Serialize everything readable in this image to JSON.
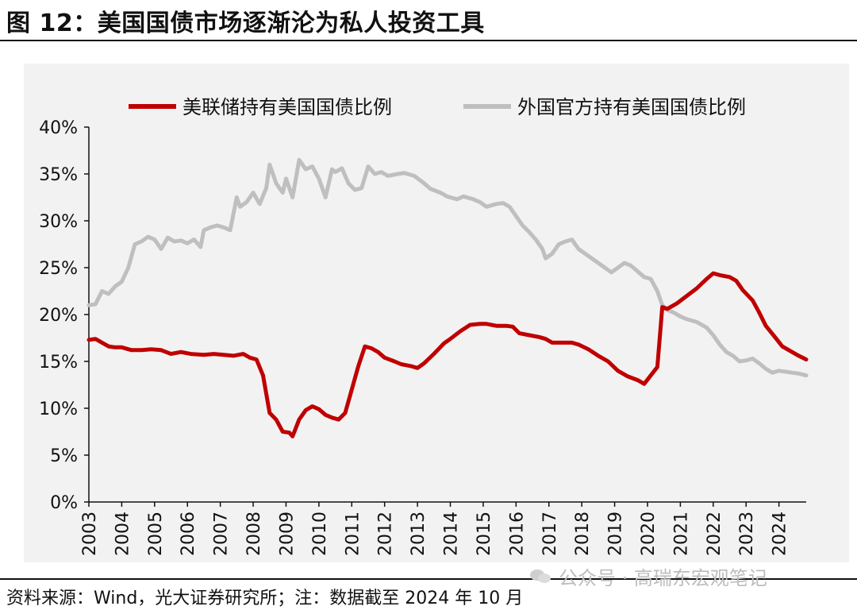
{
  "figure": {
    "title": "图 12：美国国债市场逐渐沦为私人投资工具",
    "source": "资料来源：Wind，光大证券研究所；注：数据截至 2024 年 10 月",
    "watermark": "公众号 · 高瑞东宏观笔记"
  },
  "colors": {
    "fed": "#c00000",
    "foreign": "#bfbfbf",
    "panel": "#f2f2f2"
  },
  "chart_data": {
    "type": "line",
    "title": "",
    "xlabel": "",
    "ylabel": "",
    "ylim": [
      0,
      40
    ],
    "yticks": [
      "0%",
      "5%",
      "10%",
      "15%",
      "20%",
      "25%",
      "30%",
      "35%",
      "40%"
    ],
    "xlim": [
      2003,
      2024.83
    ],
    "xticks": [
      "2003",
      "2004",
      "2005",
      "2006",
      "2007",
      "2008",
      "2009",
      "2010",
      "2011",
      "2012",
      "2013",
      "2014",
      "2015",
      "2016",
      "2017",
      "2018",
      "2019",
      "2020",
      "2021",
      "2022",
      "2023",
      "2024"
    ],
    "grid": false,
    "legend": "top",
    "series": [
      {
        "name": "美联储持有美国国债比例",
        "color": "#c00000",
        "points": [
          [
            2003.0,
            17.3
          ],
          [
            2003.2,
            17.4
          ],
          [
            2003.4,
            17.0
          ],
          [
            2003.6,
            16.6
          ],
          [
            2003.8,
            16.5
          ],
          [
            2004.0,
            16.5
          ],
          [
            2004.3,
            16.2
          ],
          [
            2004.6,
            16.2
          ],
          [
            2004.9,
            16.3
          ],
          [
            2005.2,
            16.2
          ],
          [
            2005.5,
            15.8
          ],
          [
            2005.8,
            16.0
          ],
          [
            2006.1,
            15.8
          ],
          [
            2006.5,
            15.7
          ],
          [
            2006.8,
            15.8
          ],
          [
            2007.1,
            15.7
          ],
          [
            2007.4,
            15.6
          ],
          [
            2007.7,
            15.8
          ],
          [
            2007.9,
            15.4
          ],
          [
            2008.1,
            15.2
          ],
          [
            2008.3,
            13.5
          ],
          [
            2008.5,
            9.5
          ],
          [
            2008.7,
            8.8
          ],
          [
            2008.9,
            7.5
          ],
          [
            2009.1,
            7.4
          ],
          [
            2009.2,
            7.0
          ],
          [
            2009.4,
            8.8
          ],
          [
            2009.6,
            9.8
          ],
          [
            2009.8,
            10.2
          ],
          [
            2010.0,
            9.9
          ],
          [
            2010.2,
            9.3
          ],
          [
            2010.4,
            9.0
          ],
          [
            2010.6,
            8.8
          ],
          [
            2010.8,
            9.5
          ],
          [
            2011.0,
            12.0
          ],
          [
            2011.2,
            14.5
          ],
          [
            2011.4,
            16.6
          ],
          [
            2011.6,
            16.4
          ],
          [
            2011.8,
            16.0
          ],
          [
            2012.0,
            15.4
          ],
          [
            2012.3,
            15.0
          ],
          [
            2012.5,
            14.7
          ],
          [
            2012.8,
            14.5
          ],
          [
            2013.0,
            14.3
          ],
          [
            2013.2,
            14.8
          ],
          [
            2013.5,
            15.8
          ],
          [
            2013.8,
            16.9
          ],
          [
            2014.0,
            17.4
          ],
          [
            2014.3,
            18.2
          ],
          [
            2014.6,
            18.9
          ],
          [
            2014.9,
            19.0
          ],
          [
            2015.1,
            19.0
          ],
          [
            2015.4,
            18.8
          ],
          [
            2015.7,
            18.8
          ],
          [
            2015.9,
            18.7
          ],
          [
            2016.1,
            18.0
          ],
          [
            2016.4,
            17.8
          ],
          [
            2016.7,
            17.6
          ],
          [
            2016.9,
            17.4
          ],
          [
            2017.1,
            17.0
          ],
          [
            2017.4,
            17.0
          ],
          [
            2017.7,
            17.0
          ],
          [
            2017.9,
            16.8
          ],
          [
            2018.2,
            16.3
          ],
          [
            2018.5,
            15.6
          ],
          [
            2018.8,
            15.0
          ],
          [
            2019.1,
            14.0
          ],
          [
            2019.4,
            13.4
          ],
          [
            2019.7,
            13.0
          ],
          [
            2019.9,
            12.6
          ],
          [
            2020.1,
            13.5
          ],
          [
            2020.3,
            14.4
          ],
          [
            2020.45,
            20.8
          ],
          [
            2020.6,
            20.6
          ],
          [
            2020.9,
            21.2
          ],
          [
            2021.2,
            22.0
          ],
          [
            2021.5,
            22.8
          ],
          [
            2021.8,
            23.8
          ],
          [
            2022.0,
            24.4
          ],
          [
            2022.2,
            24.2
          ],
          [
            2022.5,
            24.0
          ],
          [
            2022.7,
            23.6
          ],
          [
            2022.9,
            22.6
          ],
          [
            2023.2,
            21.5
          ],
          [
            2023.4,
            20.2
          ],
          [
            2023.6,
            18.8
          ],
          [
            2023.9,
            17.5
          ],
          [
            2024.1,
            16.6
          ],
          [
            2024.4,
            16.0
          ],
          [
            2024.6,
            15.6
          ],
          [
            2024.83,
            15.2
          ]
        ]
      },
      {
        "name": "外国官方持有美国国债比例",
        "color": "#bfbfbf",
        "points": [
          [
            2003.0,
            21.0
          ],
          [
            2003.2,
            21.1
          ],
          [
            2003.4,
            22.5
          ],
          [
            2003.6,
            22.2
          ],
          [
            2003.8,
            23.0
          ],
          [
            2004.0,
            23.5
          ],
          [
            2004.2,
            25.0
          ],
          [
            2004.4,
            27.5
          ],
          [
            2004.6,
            27.8
          ],
          [
            2004.8,
            28.3
          ],
          [
            2005.0,
            28.0
          ],
          [
            2005.2,
            27.0
          ],
          [
            2005.4,
            28.2
          ],
          [
            2005.6,
            27.8
          ],
          [
            2005.8,
            27.9
          ],
          [
            2006.0,
            27.6
          ],
          [
            2006.2,
            28.0
          ],
          [
            2006.4,
            27.2
          ],
          [
            2006.5,
            29.0
          ],
          [
            2006.7,
            29.3
          ],
          [
            2006.9,
            29.5
          ],
          [
            2007.1,
            29.3
          ],
          [
            2007.3,
            29.0
          ],
          [
            2007.5,
            32.5
          ],
          [
            2007.6,
            31.5
          ],
          [
            2007.8,
            32.0
          ],
          [
            2008.0,
            33.0
          ],
          [
            2008.2,
            31.8
          ],
          [
            2008.4,
            33.5
          ],
          [
            2008.5,
            36.0
          ],
          [
            2008.7,
            34.0
          ],
          [
            2008.9,
            33.0
          ],
          [
            2009.0,
            34.5
          ],
          [
            2009.2,
            32.5
          ],
          [
            2009.4,
            36.5
          ],
          [
            2009.6,
            35.5
          ],
          [
            2009.8,
            35.8
          ],
          [
            2010.0,
            34.5
          ],
          [
            2010.2,
            32.5
          ],
          [
            2010.4,
            35.5
          ],
          [
            2010.5,
            35.2
          ],
          [
            2010.7,
            35.6
          ],
          [
            2010.9,
            34.0
          ],
          [
            2011.1,
            33.3
          ],
          [
            2011.3,
            33.5
          ],
          [
            2011.5,
            35.8
          ],
          [
            2011.7,
            35.0
          ],
          [
            2011.9,
            35.2
          ],
          [
            2012.1,
            34.8
          ],
          [
            2012.4,
            35.0
          ],
          [
            2012.6,
            35.1
          ],
          [
            2012.9,
            34.8
          ],
          [
            2013.2,
            34.0
          ],
          [
            2013.4,
            33.4
          ],
          [
            2013.7,
            33.0
          ],
          [
            2013.9,
            32.6
          ],
          [
            2014.2,
            32.3
          ],
          [
            2014.4,
            32.6
          ],
          [
            2014.7,
            32.3
          ],
          [
            2014.9,
            32.0
          ],
          [
            2015.1,
            31.5
          ],
          [
            2015.4,
            31.8
          ],
          [
            2015.6,
            31.9
          ],
          [
            2015.8,
            31.5
          ],
          [
            2016.0,
            30.5
          ],
          [
            2016.2,
            29.5
          ],
          [
            2016.4,
            28.8
          ],
          [
            2016.6,
            28.0
          ],
          [
            2016.8,
            27.0
          ],
          [
            2016.9,
            26.0
          ],
          [
            2017.1,
            26.5
          ],
          [
            2017.3,
            27.5
          ],
          [
            2017.5,
            27.8
          ],
          [
            2017.7,
            28.0
          ],
          [
            2017.9,
            27.0
          ],
          [
            2018.1,
            26.5
          ],
          [
            2018.3,
            26.0
          ],
          [
            2018.5,
            25.5
          ],
          [
            2018.7,
            25.0
          ],
          [
            2018.9,
            24.5
          ],
          [
            2019.1,
            25.0
          ],
          [
            2019.3,
            25.5
          ],
          [
            2019.5,
            25.2
          ],
          [
            2019.7,
            24.6
          ],
          [
            2019.9,
            24.0
          ],
          [
            2020.1,
            23.8
          ],
          [
            2020.3,
            22.5
          ],
          [
            2020.45,
            21.0
          ],
          [
            2020.6,
            20.5
          ],
          [
            2020.8,
            20.2
          ],
          [
            2021.0,
            19.8
          ],
          [
            2021.2,
            19.5
          ],
          [
            2021.5,
            19.2
          ],
          [
            2021.8,
            18.6
          ],
          [
            2022.0,
            17.8
          ],
          [
            2022.2,
            16.8
          ],
          [
            2022.4,
            16.0
          ],
          [
            2022.6,
            15.6
          ],
          [
            2022.8,
            15.0
          ],
          [
            2023.0,
            15.1
          ],
          [
            2023.2,
            15.3
          ],
          [
            2023.4,
            14.8
          ],
          [
            2023.6,
            14.2
          ],
          [
            2023.8,
            13.8
          ],
          [
            2024.0,
            14.0
          ],
          [
            2024.2,
            13.9
          ],
          [
            2024.4,
            13.8
          ],
          [
            2024.6,
            13.7
          ],
          [
            2024.83,
            13.5
          ]
        ]
      }
    ]
  }
}
